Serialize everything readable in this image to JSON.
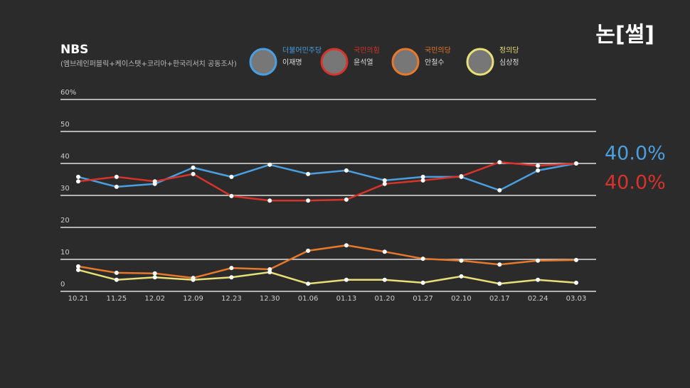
{
  "logo": "논[썰]",
  "chart_data": {
    "type": "line",
    "title": "NBS",
    "subtitle": "(엠브레인퍼블릭+케이스탯+코리아+한국리서치 공동조사)",
    "categories": [
      "10.21",
      "11.25",
      "12.02",
      "12.09",
      "12.23",
      "12.30",
      "01.06",
      "01.13",
      "01.20",
      "01.27",
      "02.10",
      "02.17",
      "02.24",
      "03.03"
    ],
    "series": [
      {
        "name": "이재명",
        "party": "더불어민주당",
        "color": "#4a9fe0",
        "values": [
          35.8,
          32.7,
          33.6,
          38.7,
          35.8,
          39.6,
          36.7,
          37.8,
          34.7,
          35.8,
          35.8,
          31.6,
          37.8,
          40
        ]
      },
      {
        "name": "윤석열",
        "party": "국민의힘",
        "color": "#d8332b",
        "values": [
          34.4,
          35.8,
          34.4,
          36.7,
          29.8,
          28.4,
          28.4,
          28.7,
          33.6,
          34.7,
          36,
          40.4,
          39.3,
          40
        ]
      },
      {
        "name": "안철수",
        "party": "국민의당",
        "color": "#e8782a",
        "values": [
          7.8,
          5.8,
          5.6,
          4.2,
          7.3,
          6.9,
          12.7,
          14.4,
          12.4,
          10.2,
          9.6,
          8.4,
          9.6,
          9.8
        ]
      },
      {
        "name": "심상정",
        "party": "정의당",
        "color": "#e8df78",
        "values": [
          6.7,
          3.6,
          4.4,
          3.6,
          4.4,
          6,
          2.4,
          3.6,
          3.6,
          2.7,
          4.7,
          2.4,
          3.6,
          2.7
        ]
      }
    ],
    "end_labels": [
      "40.0%",
      "40.0%"
    ],
    "ylim": [
      0,
      60
    ],
    "yticks": [
      0,
      10,
      20,
      30,
      40,
      50,
      {
        "value": 60,
        "label": "60%"
      }
    ],
    "grid": true
  }
}
